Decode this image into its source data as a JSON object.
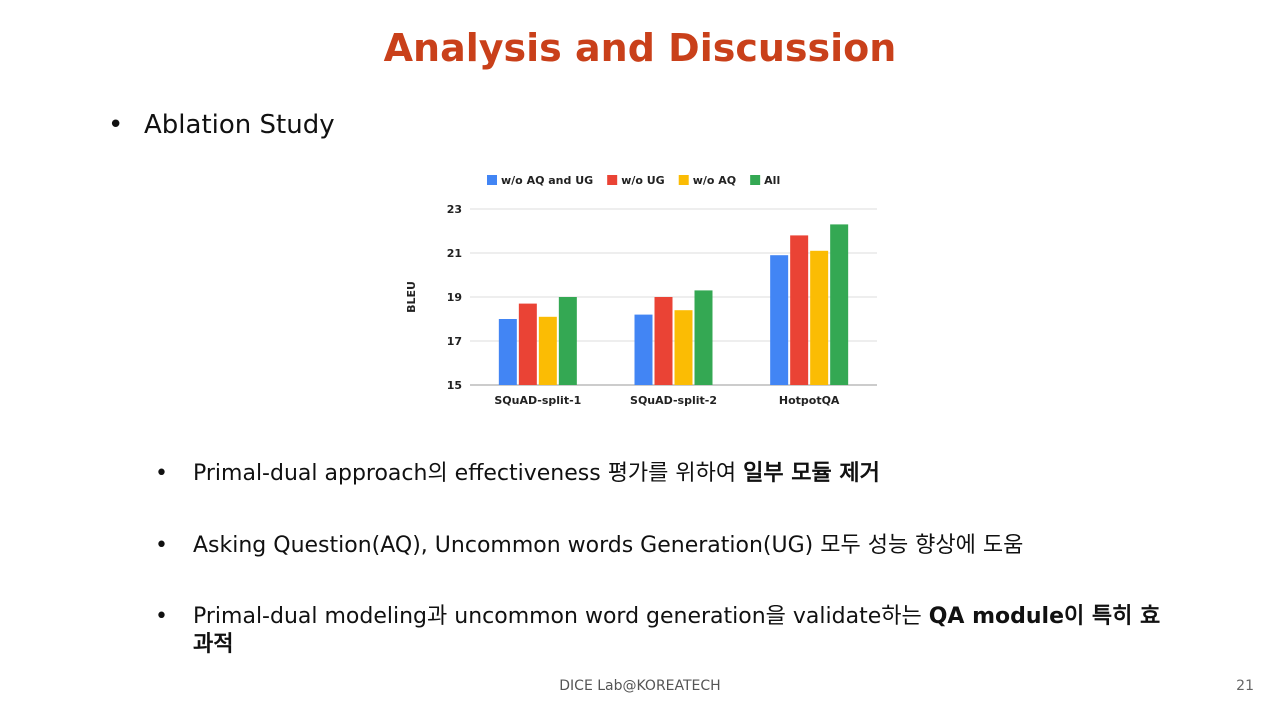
{
  "slide": {
    "title": "Analysis and Discussion",
    "main_bullet": "Ablation Study",
    "footer": "DICE Lab@KOREATECH",
    "page_number": "21"
  },
  "bullets": [
    {
      "parts": [
        {
          "text": "Primal-dual approach의 effectiveness 평가를 위하여 ",
          "bold": false
        },
        {
          "text": "일부 모듈 제거",
          "bold": true
        }
      ]
    },
    {
      "parts": [
        {
          "text": "Asking Question(AQ), Uncommon words Generation(UG) 모두 성능 향상에 도움",
          "bold": false
        }
      ]
    },
    {
      "parts": [
        {
          "text": "Primal-dual modeling과 uncommon word generation을 validate하는 ",
          "bold": false
        },
        {
          "text": "QA module이 특히 효과적",
          "bold": true
        }
      ]
    }
  ],
  "chart_data": {
    "type": "bar",
    "categories": [
      "SQuAD-split-1",
      "SQuAD-split-2",
      "HotpotQA"
    ],
    "series": [
      {
        "name": "w/o AQ and UG",
        "color": "#4285f4",
        "values": [
          18.0,
          18.2,
          20.9
        ]
      },
      {
        "name": "w/o UG",
        "color": "#ea4335",
        "values": [
          18.7,
          19.0,
          21.8
        ]
      },
      {
        "name": "w/o AQ",
        "color": "#fbbc04",
        "values": [
          18.1,
          18.4,
          21.1
        ]
      },
      {
        "name": "All",
        "color": "#34a853",
        "values": [
          19.0,
          19.3,
          22.3
        ]
      }
    ],
    "ylabel": "BLEU",
    "ylim": [
      15,
      23
    ],
    "yticks": [
      15,
      17,
      19,
      21,
      23
    ],
    "legend_position": "top",
    "grid": true
  }
}
